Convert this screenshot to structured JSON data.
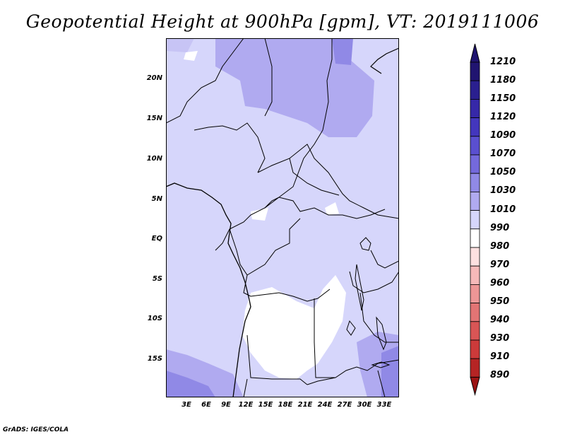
{
  "title": "Geopotential Height at 900hPa [gpm], VT: 2019111006",
  "credit": "GrADS: IGES/COLA",
  "lat_ticks": [
    "20N",
    "15N",
    "10N",
    "5N",
    "EQ",
    "5S",
    "10S",
    "15S"
  ],
  "lon_ticks": [
    "3E",
    "6E",
    "9E",
    "12E",
    "15E",
    "18E",
    "21E",
    "24E",
    "27E",
    "30E",
    "33E"
  ],
  "colorbar": {
    "labels": [
      "1210",
      "1180",
      "1150",
      "1120",
      "1090",
      "1070",
      "1050",
      "1030",
      "1010",
      "990",
      "980",
      "970",
      "960",
      "950",
      "940",
      "930",
      "910",
      "890"
    ],
    "colors": [
      "#201470",
      "#2a1f8f",
      "#3628a8",
      "#4336bd",
      "#5a4fd0",
      "#7469dc",
      "#9089e6",
      "#b0aaf0",
      "#d6d6fb",
      "#ffffff",
      "#fde0e0",
      "#f6b9b9",
      "#ed9696",
      "#e27474",
      "#d95555",
      "#cc3a3a",
      "#b52424",
      "#9b1414"
    ]
  },
  "map": {
    "region": "Central Africa",
    "fill_colors": {
      "level_1010": "#d6d6fb",
      "level_1030": "#b0aaf0",
      "level_1050": "#9089e6",
      "below_1010": "#ffffff"
    }
  }
}
